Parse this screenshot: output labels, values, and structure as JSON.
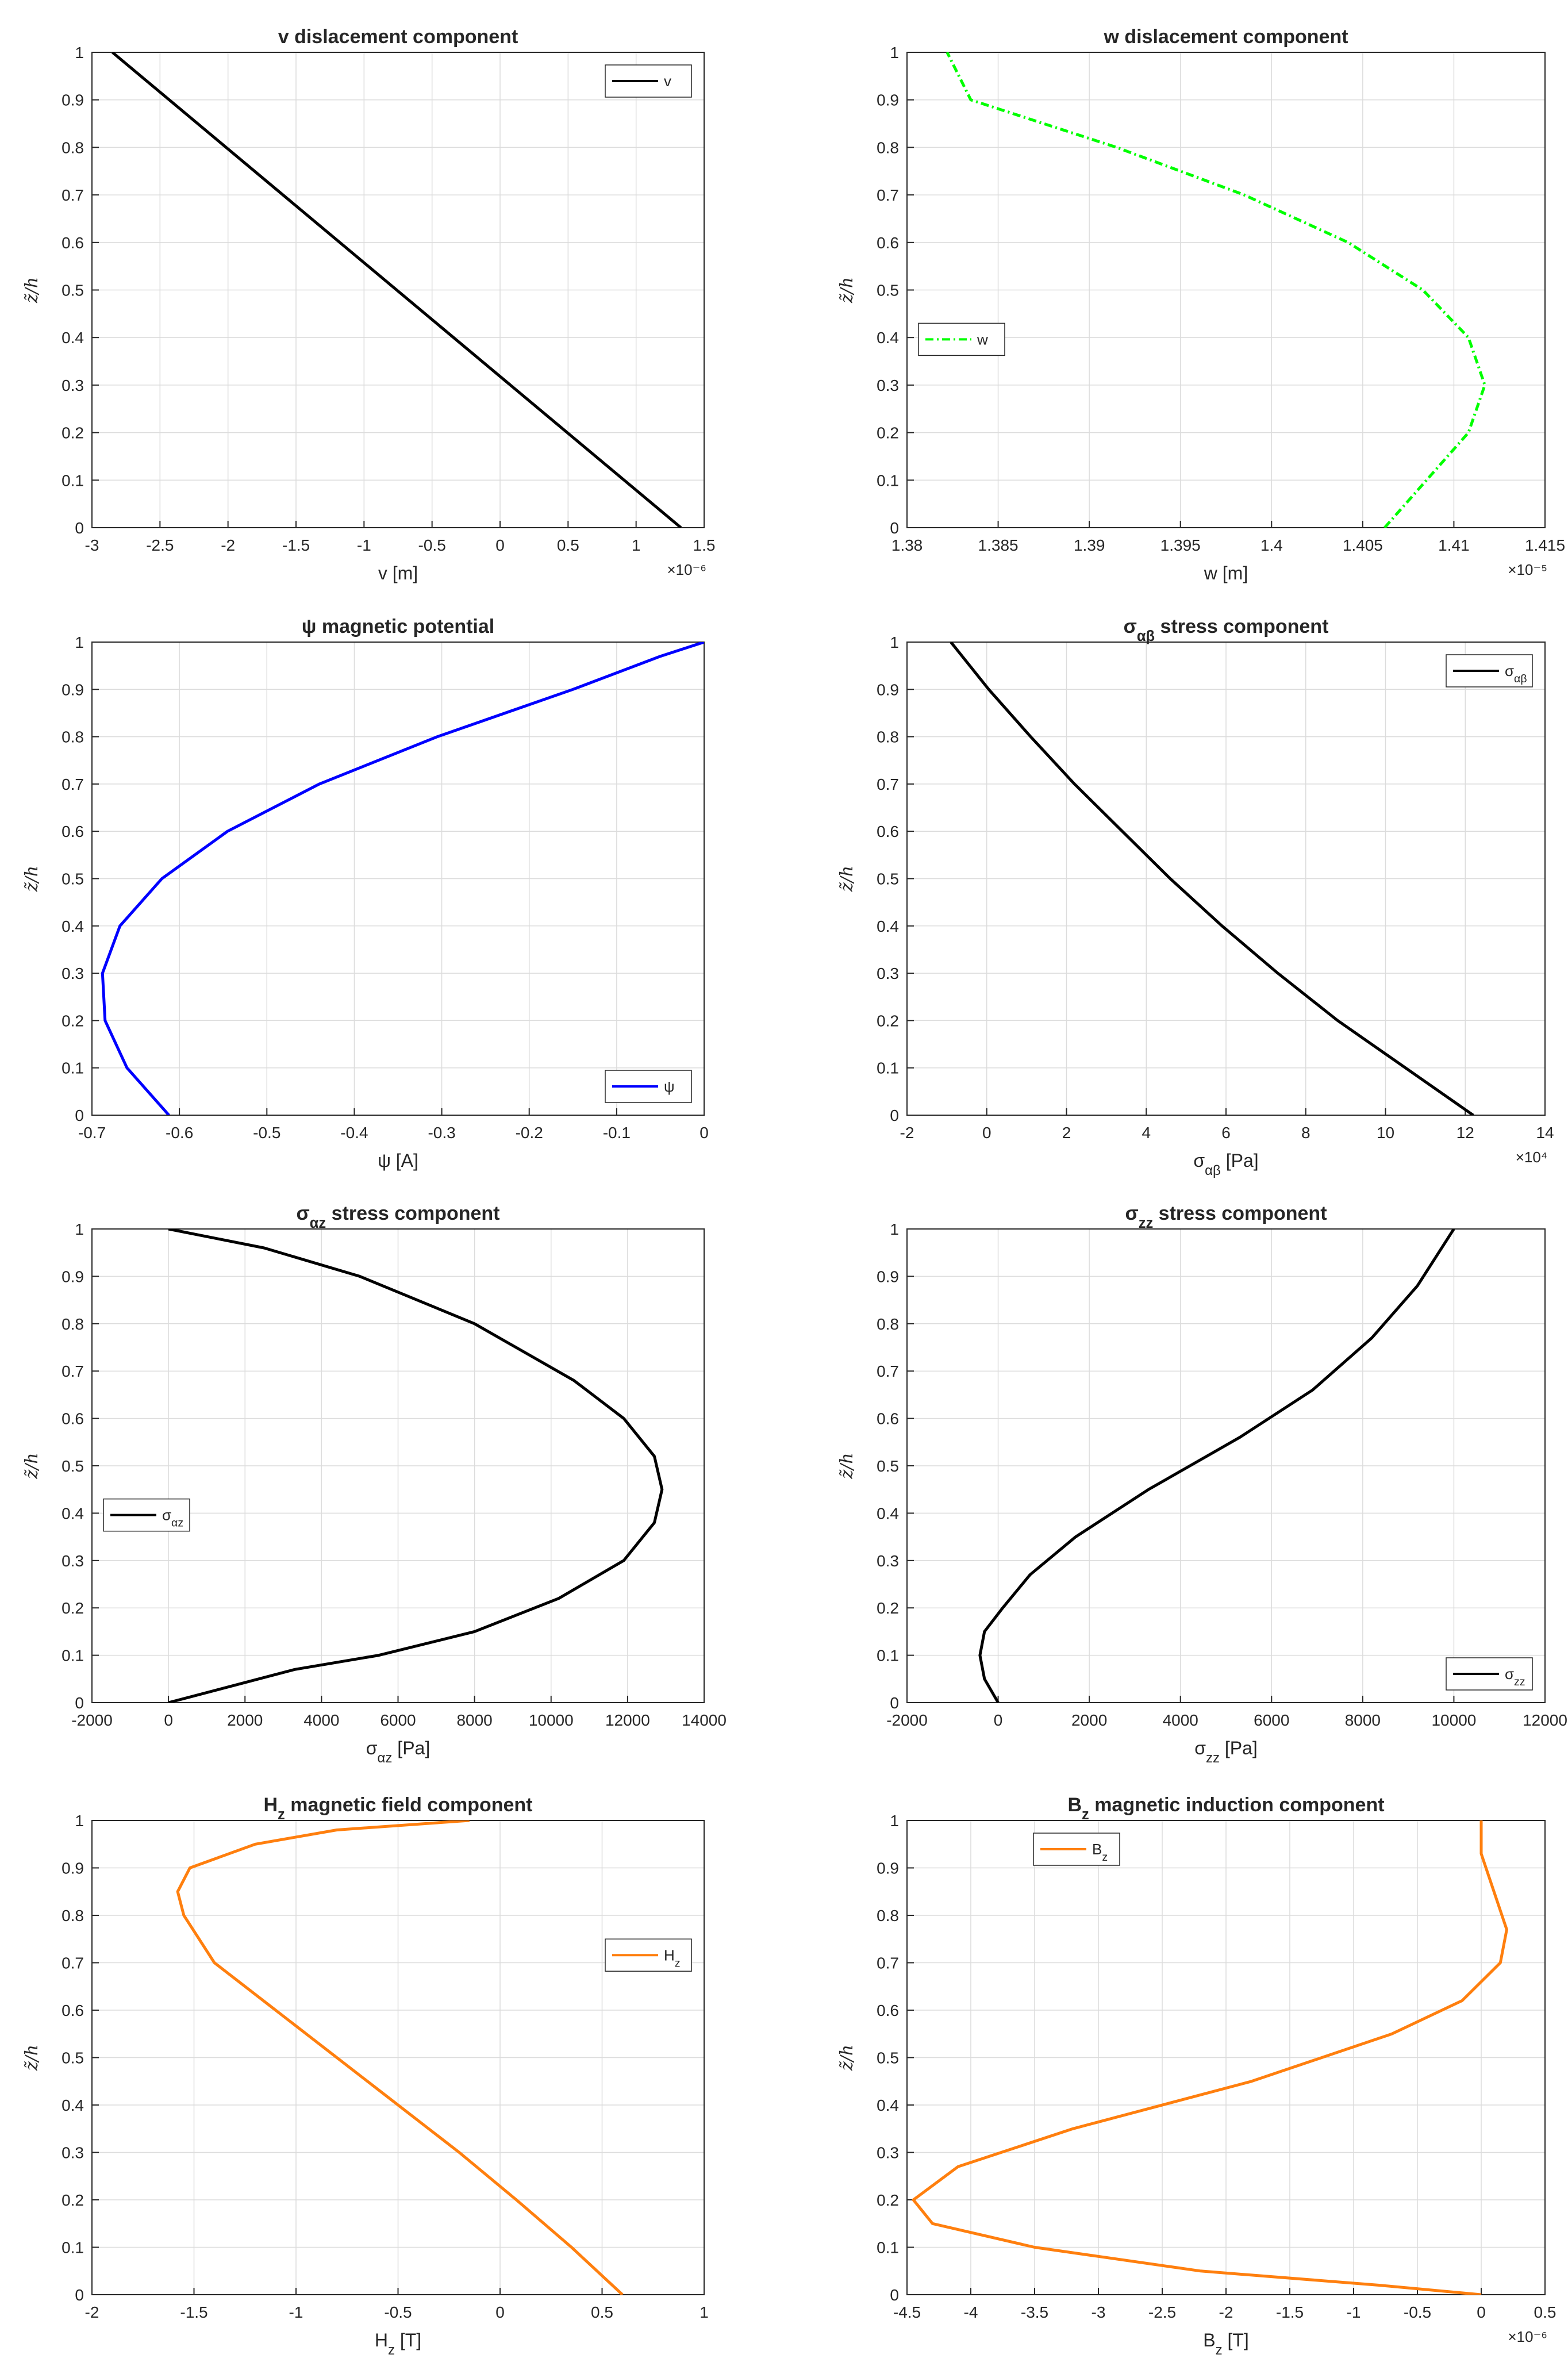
{
  "figure": {
    "y_axis_label": "z̃/h"
  },
  "chart_data": [
    {
      "type": "line",
      "id": "v",
      "title": "v dislacement component",
      "xlabel": "v [m]",
      "exponent": "×10⁻⁶",
      "scale": 1e-06,
      "xlim": [
        -3,
        1.5
      ],
      "xticks": [
        "-3",
        "-2.5",
        "-2",
        "-1.5",
        "-1",
        "-0.5",
        "0",
        "0.5",
        "1",
        "1.5"
      ],
      "ylim": [
        0,
        1
      ],
      "yticks": [
        "0",
        "0.1",
        "0.2",
        "0.3",
        "0.4",
        "0.5",
        "0.6",
        "0.7",
        "0.8",
        "0.9",
        "1"
      ],
      "grid": true,
      "legend": "top-right",
      "series": [
        {
          "name": "v",
          "color": "#000000",
          "dash": "solid",
          "points": [
            [
              -2.85,
              1
            ],
            [
              1.33,
              0
            ]
          ]
        }
      ]
    },
    {
      "type": "line",
      "id": "w",
      "title": "w dislacement component",
      "xlabel": "w [m]",
      "exponent": "×10⁻⁵",
      "scale": 1e-05,
      "xlim": [
        1.38,
        1.415
      ],
      "xticks": [
        "1.38",
        "1.385",
        "1.39",
        "1.395",
        "1.4",
        "1.405",
        "1.41",
        "1.415"
      ],
      "ylim": [
        0,
        1
      ],
      "yticks": [
        "0",
        "0.1",
        "0.2",
        "0.3",
        "0.4",
        "0.5",
        "0.6",
        "0.7",
        "0.8",
        "0.9",
        "1"
      ],
      "grid": true,
      "legend": "middle-left",
      "series": [
        {
          "name": "w",
          "color": "#00ff00",
          "dash": "dashdot",
          "points": [
            [
              1.4062,
              0
            ],
            [
              1.4085,
              0.1
            ],
            [
              1.4108,
              0.2
            ],
            [
              1.4117,
              0.3
            ],
            [
              1.4108,
              0.4
            ],
            [
              1.4083,
              0.5
            ],
            [
              1.4042,
              0.6
            ],
            [
              1.3985,
              0.7
            ],
            [
              1.3915,
              0.8
            ],
            [
              1.3835,
              0.9
            ],
            [
              1.3822,
              1
            ]
          ]
        }
      ]
    },
    {
      "type": "line",
      "id": "psi",
      "title": "ψ magnetic potential",
      "xlabel": "ψ [A]",
      "exponent": "",
      "scale": 1,
      "xlim": [
        -0.7,
        0
      ],
      "xticks": [
        "-0.7",
        "-0.6",
        "-0.5",
        "-0.4",
        "-0.3",
        "-0.2",
        "-0.1",
        "0"
      ],
      "ylim": [
        0,
        1
      ],
      "yticks": [
        "0",
        "0.1",
        "0.2",
        "0.3",
        "0.4",
        "0.5",
        "0.6",
        "0.7",
        "0.8",
        "0.9",
        "1"
      ],
      "grid": true,
      "legend": "bottom-right",
      "series": [
        {
          "name": "ψ",
          "color": "#0000ff",
          "dash": "solid",
          "points": [
            [
              -0.612,
              0
            ],
            [
              -0.66,
              0.1
            ],
            [
              -0.685,
              0.2
            ],
            [
              -0.688,
              0.3
            ],
            [
              -0.668,
              0.4
            ],
            [
              -0.62,
              0.5
            ],
            [
              -0.545,
              0.6
            ],
            [
              -0.44,
              0.7
            ],
            [
              -0.305,
              0.8
            ],
            [
              -0.15,
              0.9
            ],
            [
              -0.05,
              0.97
            ],
            [
              0,
              1
            ]
          ]
        }
      ]
    },
    {
      "type": "line",
      "id": "sab",
      "title": "σ_αβ stress component",
      "xlabel": "σ_αβ [Pa]",
      "exponent": "×10⁴",
      "scale": 10000.0,
      "xlim": [
        -2,
        14
      ],
      "xticks": [
        "-2",
        "0",
        "2",
        "4",
        "6",
        "8",
        "10",
        "12",
        "14"
      ],
      "ylim": [
        0,
        1
      ],
      "yticks": [
        "0",
        "0.1",
        "0.2",
        "0.3",
        "0.4",
        "0.5",
        "0.6",
        "0.7",
        "0.8",
        "0.9",
        "1"
      ],
      "grid": true,
      "legend": "top-right",
      "series": [
        {
          "name": "σ_αβ",
          "color": "#000000",
          "dash": "solid",
          "points": [
            [
              12.2,
              0
            ],
            [
              10.5,
              0.1
            ],
            [
              8.8,
              0.2
            ],
            [
              7.3,
              0.3
            ],
            [
              5.9,
              0.4
            ],
            [
              4.6,
              0.5
            ],
            [
              3.4,
              0.6
            ],
            [
              2.2,
              0.7
            ],
            [
              1.1,
              0.8
            ],
            [
              0.05,
              0.9
            ],
            [
              -0.9,
              1
            ]
          ]
        }
      ]
    },
    {
      "type": "line",
      "id": "saz",
      "title": "σ_αz stress component",
      "xlabel": "σ_αz [Pa]",
      "exponent": "",
      "scale": 1,
      "xlim": [
        -2000,
        14000
      ],
      "xticks": [
        "-2000",
        "0",
        "2000",
        "4000",
        "6000",
        "8000",
        "10000",
        "12000",
        "14000"
      ],
      "ylim": [
        0,
        1
      ],
      "yticks": [
        "0",
        "0.1",
        "0.2",
        "0.3",
        "0.4",
        "0.5",
        "0.6",
        "0.7",
        "0.8",
        "0.9",
        "1"
      ],
      "grid": true,
      "legend": "middle-left",
      "series": [
        {
          "name": "σ_αz",
          "color": "#000000",
          "dash": "solid",
          "points": [
            [
              0,
              0
            ],
            [
              3300,
              0.07
            ],
            [
              5500,
              0.1
            ],
            [
              8000,
              0.15
            ],
            [
              10200,
              0.22
            ],
            [
              11900,
              0.3
            ],
            [
              12700,
              0.38
            ],
            [
              12900,
              0.45
            ],
            [
              12700,
              0.52
            ],
            [
              11900,
              0.6
            ],
            [
              10600,
              0.68
            ],
            [
              8000,
              0.8
            ],
            [
              5000,
              0.9
            ],
            [
              2500,
              0.96
            ],
            [
              0,
              1
            ]
          ]
        }
      ]
    },
    {
      "type": "line",
      "id": "szz",
      "title": "σ_zz stress component",
      "xlabel": "σ_zz [Pa]",
      "exponent": "",
      "scale": 1,
      "xlim": [
        -2000,
        12000
      ],
      "xticks": [
        "-2000",
        "0",
        "2000",
        "4000",
        "6000",
        "8000",
        "10000",
        "12000"
      ],
      "ylim": [
        0,
        1
      ],
      "yticks": [
        "0",
        "0.1",
        "0.2",
        "0.3",
        "0.4",
        "0.5",
        "0.6",
        "0.7",
        "0.8",
        "0.9",
        "1"
      ],
      "grid": true,
      "legend": "bottom-right",
      "series": [
        {
          "name": "σ_zz",
          "color": "#000000",
          "dash": "solid",
          "points": [
            [
              0,
              0
            ],
            [
              -300,
              0.05
            ],
            [
              -400,
              0.1
            ],
            [
              -300,
              0.15
            ],
            [
              100,
              0.2
            ],
            [
              700,
              0.27
            ],
            [
              1700,
              0.35
            ],
            [
              3300,
              0.45
            ],
            [
              5300,
              0.56
            ],
            [
              6900,
              0.66
            ],
            [
              8200,
              0.77
            ],
            [
              9200,
              0.88
            ],
            [
              10000,
              1
            ]
          ]
        }
      ]
    },
    {
      "type": "line",
      "id": "hz",
      "title": "H_z magnetic field component",
      "xlabel": "H_z [T]",
      "exponent": "",
      "scale": 1,
      "xlim": [
        -2,
        1
      ],
      "xticks": [
        "-2",
        "-1.5",
        "-1",
        "-0.5",
        "0",
        "0.5",
        "1"
      ],
      "ylim": [
        0,
        1
      ],
      "yticks": [
        "0",
        "0.1",
        "0.2",
        "0.3",
        "0.4",
        "0.5",
        "0.6",
        "0.7",
        "0.8",
        "0.9",
        "1"
      ],
      "grid": true,
      "legend": "middle-right",
      "series": [
        {
          "name": "H_z",
          "color": "#ff7f0e",
          "dash": "solid",
          "points": [
            [
              0.6,
              0
            ],
            [
              0.35,
              0.1
            ],
            [
              0.08,
              0.2
            ],
            [
              -0.2,
              0.3
            ],
            [
              -0.5,
              0.4
            ],
            [
              -0.8,
              0.5
            ],
            [
              -1.1,
              0.6
            ],
            [
              -1.4,
              0.7
            ],
            [
              -1.55,
              0.8
            ],
            [
              -1.58,
              0.85
            ],
            [
              -1.52,
              0.9
            ],
            [
              -1.2,
              0.95
            ],
            [
              -0.8,
              0.98
            ],
            [
              -0.15,
              1
            ]
          ]
        }
      ]
    },
    {
      "type": "line",
      "id": "bz",
      "title": "B_z magnetic induction component",
      "xlabel": "B_z [T]",
      "exponent": "×10⁻⁶",
      "scale": 1e-06,
      "xlim": [
        -4.5,
        0.5
      ],
      "xticks": [
        "-4.5",
        "-4",
        "-3.5",
        "-3",
        "-2.5",
        "-2",
        "-1.5",
        "-1",
        "-0.5",
        "0",
        "0.5"
      ],
      "ylim": [
        0,
        1
      ],
      "yticks": [
        "0",
        "0.1",
        "0.2",
        "0.3",
        "0.4",
        "0.5",
        "0.6",
        "0.7",
        "0.8",
        "0.9",
        "1"
      ],
      "grid": true,
      "legend": "top-left",
      "series": [
        {
          "name": "B_z",
          "color": "#ff7f0e",
          "dash": "solid",
          "points": [
            [
              0,
              0
            ],
            [
              -0.8,
              0.02
            ],
            [
              -2.2,
              0.05
            ],
            [
              -3.5,
              0.1
            ],
            [
              -4.3,
              0.15
            ],
            [
              -4.45,
              0.2
            ],
            [
              -4.1,
              0.27
            ],
            [
              -3.2,
              0.35
            ],
            [
              -1.8,
              0.45
            ],
            [
              -0.7,
              0.55
            ],
            [
              -0.15,
              0.62
            ],
            [
              0.15,
              0.7
            ],
            [
              0.2,
              0.77
            ],
            [
              0.1,
              0.85
            ],
            [
              0,
              0.93
            ],
            [
              0,
              1
            ]
          ]
        }
      ]
    }
  ]
}
